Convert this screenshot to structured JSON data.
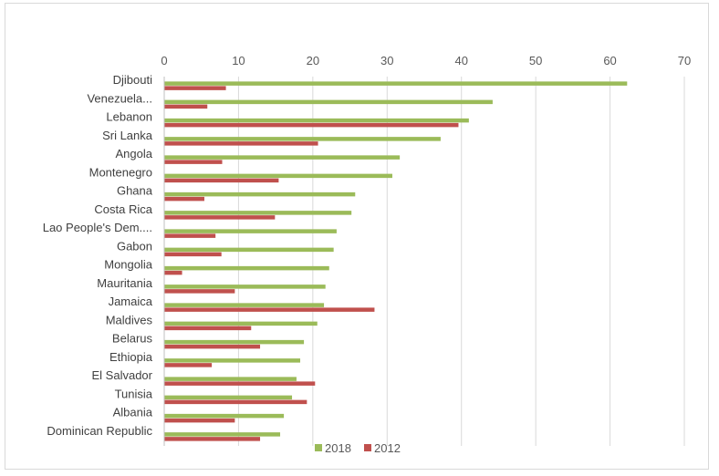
{
  "chart_data": {
    "type": "bar",
    "orientation": "horizontal",
    "title": "",
    "xlabel": "",
    "ylabel": "",
    "xlim": [
      0,
      70
    ],
    "ticks": [
      0,
      10,
      20,
      30,
      40,
      50,
      60,
      70
    ],
    "tick_labels": [
      "0",
      "10",
      "20",
      "30",
      "40",
      "50",
      "60",
      "70"
    ],
    "grid": true,
    "legend_position": "bottom",
    "categories": [
      "Djibouti",
      "Venezuela...",
      "Lebanon",
      "Sri Lanka",
      "Angola",
      "Montenegro",
      "Ghana",
      "Costa Rica",
      "Lao People's Dem....",
      "Gabon",
      "Mongolia",
      "Mauritania",
      "Jamaica",
      "Maldives",
      "Belarus",
      "Ethiopia",
      "El Salvador",
      "Tunisia",
      "Albania",
      "Dominican Republic"
    ],
    "series": [
      {
        "name": "2018",
        "color": "#9bbb59",
        "values": [
          62.3,
          44.2,
          41.0,
          37.2,
          31.7,
          30.7,
          25.7,
          25.2,
          23.2,
          22.8,
          22.2,
          21.7,
          21.5,
          20.6,
          18.8,
          18.3,
          17.8,
          17.2,
          16.1,
          15.6
        ]
      },
      {
        "name": "2012",
        "color": "#c0504d",
        "values": [
          8.3,
          5.8,
          39.6,
          20.7,
          7.8,
          15.4,
          5.4,
          14.9,
          6.9,
          7.7,
          2.4,
          9.5,
          28.3,
          11.7,
          12.9,
          6.4,
          20.3,
          19.2,
          9.5,
          12.9
        ]
      }
    ]
  }
}
